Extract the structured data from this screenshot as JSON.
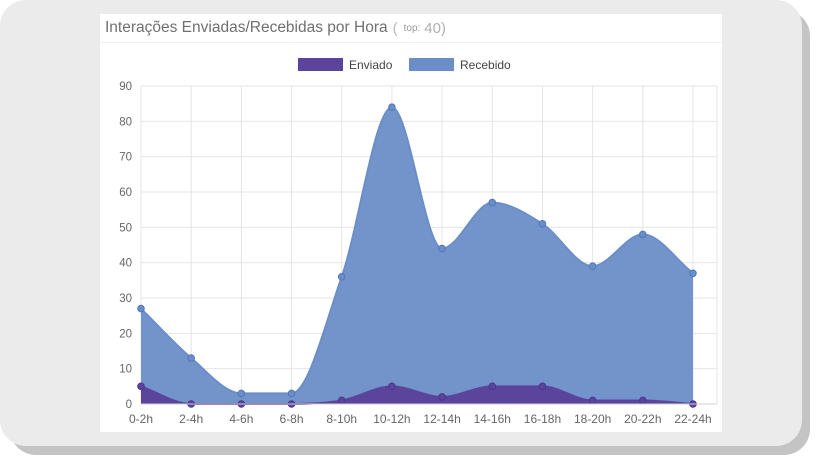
{
  "header": {
    "title": "Interações Enviadas/Recebidas por Hora",
    "paren_open": "(",
    "top_label": "top:",
    "top_value": "40)"
  },
  "colors": {
    "enviado": "#5b459c",
    "recebido": "#6b8ec8",
    "grid": "#e4e4e4",
    "axis_text": "#666666"
  },
  "chart_data": {
    "type": "area",
    "categories": [
      "0-2h",
      "2-4h",
      "4-6h",
      "6-8h",
      "8-10h",
      "10-12h",
      "12-14h",
      "14-16h",
      "16-18h",
      "18-20h",
      "20-22h",
      "22-24h"
    ],
    "series": [
      {
        "name": "Enviado",
        "values": [
          5,
          0,
          0,
          0,
          1,
          5,
          2,
          5,
          5,
          1,
          1,
          0
        ]
      },
      {
        "name": "Recebido",
        "values": [
          27,
          13,
          3,
          3,
          36,
          84,
          44,
          57,
          51,
          39,
          48,
          37
        ]
      }
    ],
    "yticks": [
      0,
      10,
      20,
      30,
      40,
      50,
      60,
      70,
      80,
      90
    ],
    "ylim": [
      0,
      90
    ],
    "grid": true,
    "legend_position": "top-center"
  }
}
